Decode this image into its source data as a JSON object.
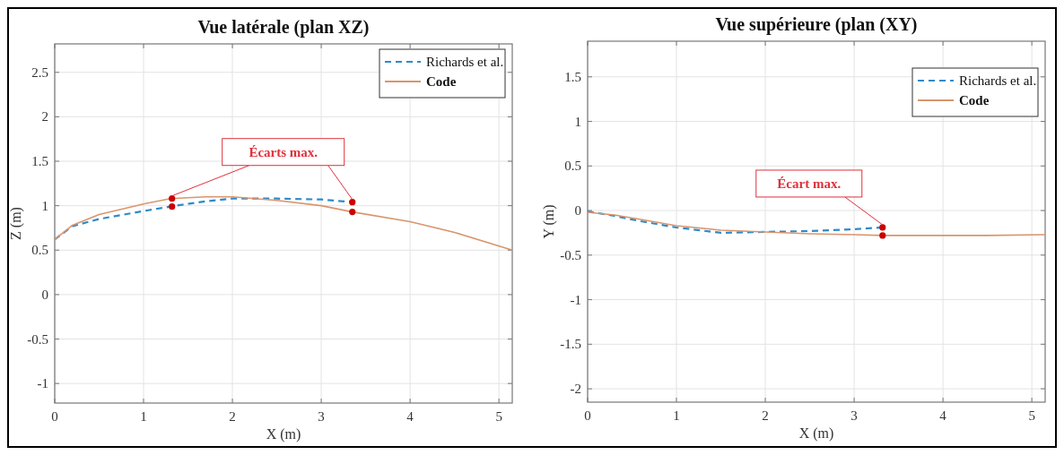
{
  "chart_data": [
    {
      "type": "line",
      "title": "Vue latérale (plan XZ)",
      "xlabel": "X (m)",
      "ylabel": "Z (m)",
      "xlim": [
        0,
        5.15
      ],
      "xticks": [
        0,
        1,
        2,
        3,
        4,
        5
      ],
      "ylim": [
        -1.22,
        2.82
      ],
      "yticks": [
        -1,
        -0.5,
        0,
        0.5,
        1,
        1.5,
        2,
        2.5
      ],
      "grid": true,
      "legend": "top right",
      "annotations": [
        {
          "text": "Écarts max.",
          "x": 1.32,
          "y": 1.08
        }
      ],
      "series": [
        {
          "name": "Richards et al.",
          "color": "#2e8bc8",
          "line_style": "dashed",
          "x": [
            0,
            0.2,
            0.5,
            1,
            1.3,
            1.7,
            2,
            2.5,
            3,
            3.35
          ],
          "values": [
            0.62,
            0.77,
            0.85,
            0.94,
            0.99,
            1.05,
            1.08,
            1.08,
            1.07,
            1.04
          ]
        },
        {
          "name": "Code",
          "color": "#d9956e",
          "line_style": "solid",
          "x": [
            0,
            0.2,
            0.5,
            1,
            1.3,
            1.7,
            2,
            2.5,
            3,
            3.35,
            4,
            4.5,
            5.15
          ],
          "values": [
            0.62,
            0.78,
            0.9,
            1.02,
            1.08,
            1.1,
            1.1,
            1.06,
            1.0,
            0.93,
            0.82,
            0.7,
            0.5
          ]
        },
        {
          "type": "scatter",
          "color": "#cc0000",
          "marker": "circle",
          "x": [
            1.32,
            1.32,
            3.35,
            3.35
          ],
          "values": [
            1.08,
            0.99,
            1.04,
            0.93
          ]
        }
      ]
    },
    {
      "type": "line",
      "title": "Vue supérieure (plan (XY)",
      "xlabel": "X (m)",
      "ylabel": "Y (m)",
      "xlim": [
        0,
        5.15
      ],
      "xticks": [
        0,
        1,
        2,
        3,
        4,
        5
      ],
      "ylim": [
        -2.15,
        1.9
      ],
      "yticks": [
        -2,
        -1.5,
        -1,
        -0.5,
        0,
        0.5,
        1,
        1.5
      ],
      "grid": true,
      "legend": "top right",
      "annotations": [
        {
          "text": "Écart max.",
          "x": 3.32,
          "y": -0.19
        }
      ],
      "series": [
        {
          "name": "Richards et al.",
          "color": "#2e8bc8",
          "line_style": "dashed",
          "x": [
            0,
            0.3,
            0.6,
            1,
            1.5,
            2,
            2.5,
            3,
            3.32
          ],
          "values": [
            -0.01,
            -0.06,
            -0.12,
            -0.19,
            -0.25,
            -0.24,
            -0.23,
            -0.21,
            -0.19
          ]
        },
        {
          "name": "Code",
          "color": "#d9956e",
          "line_style": "solid",
          "x": [
            0,
            0.3,
            0.6,
            1,
            1.5,
            2,
            2.5,
            3,
            3.32,
            4,
            4.5,
            5.15
          ],
          "values": [
            -0.02,
            -0.05,
            -0.1,
            -0.17,
            -0.22,
            -0.24,
            -0.26,
            -0.27,
            -0.28,
            -0.28,
            -0.28,
            -0.27
          ]
        },
        {
          "type": "scatter",
          "color": "#cc0000",
          "marker": "circle",
          "x": [
            3.32,
            3.32
          ],
          "values": [
            -0.19,
            -0.28
          ]
        }
      ]
    }
  ]
}
